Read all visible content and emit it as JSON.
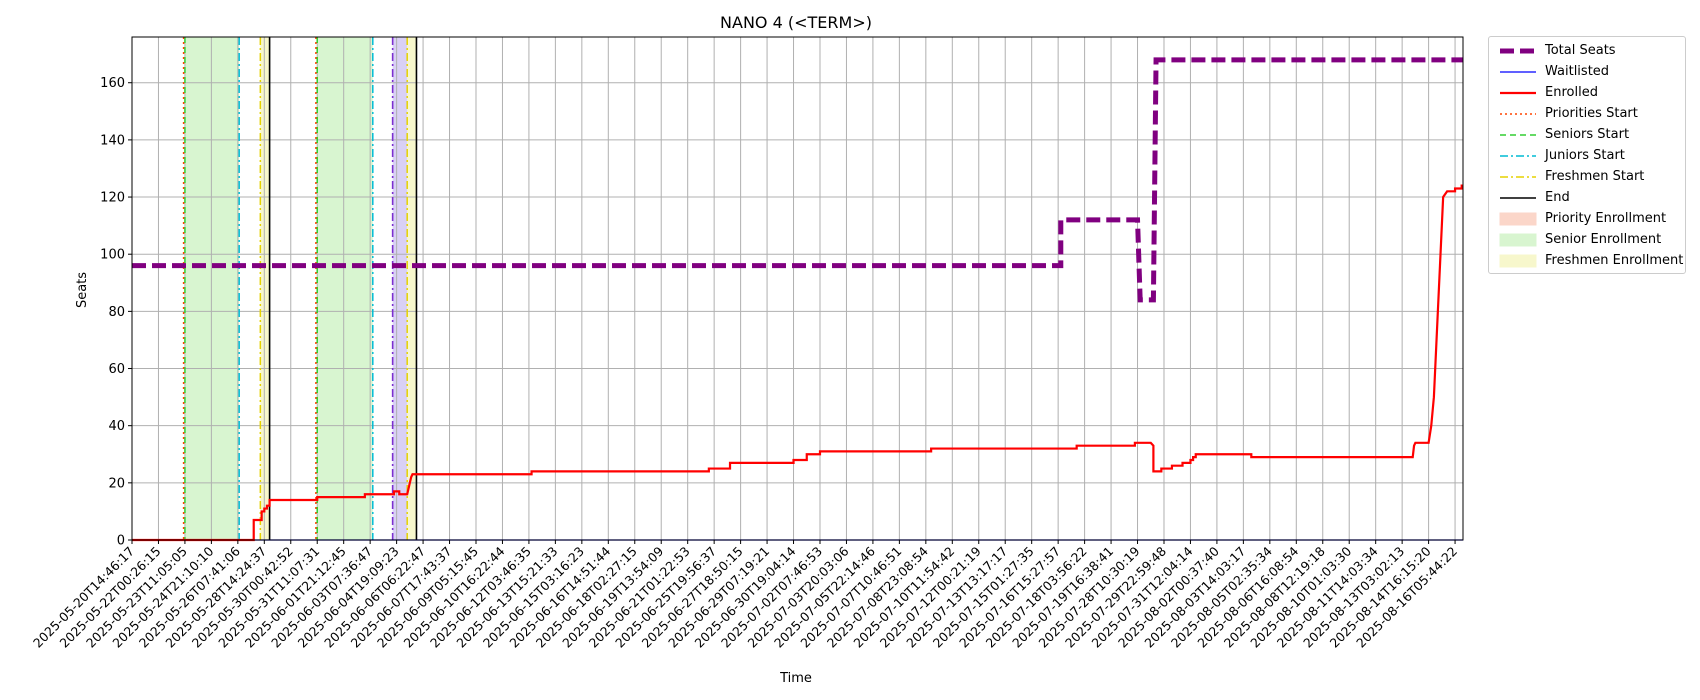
{
  "chart_data": {
    "type": "line",
    "title": "NANO 4 (<TERM>)",
    "xlabel": "Time",
    "ylabel": "Seats",
    "ylim": [
      0,
      176
    ],
    "y_ticks": [
      0,
      20,
      40,
      60,
      80,
      100,
      120,
      140,
      160
    ],
    "grid": true,
    "legend_position": "outside-top-right",
    "x_ticks": [
      "2025-05-20T14:46:17",
      "2025-05-22T00:26:15",
      "2025-05-23T11:05:05",
      "2025-05-24T21:10:10",
      "2025-05-26T07:41:06",
      "2025-05-28T14:24:37",
      "2025-05-30T00:42:52",
      "2025-05-31T11:07:31",
      "2025-06-01T21:12:45",
      "2025-06-03T07:36:47",
      "2025-06-04T19:09:23",
      "2025-06-06T06:22:47",
      "2025-06-07T17:43:37",
      "2025-06-09T05:15:45",
      "2025-06-10T16:22:44",
      "2025-06-12T03:46:35",
      "2025-06-13T15:21:33",
      "2025-06-15T03:16:23",
      "2025-06-16T14:51:44",
      "2025-06-18T02:27:15",
      "2025-06-19T13:54:09",
      "2025-06-21T01:22:53",
      "2025-06-25T19:56:37",
      "2025-06-27T18:50:15",
      "2025-06-29T07:19:21",
      "2025-06-30T19:04:14",
      "2025-07-02T07:46:53",
      "2025-07-03T20:03:06",
      "2025-07-05T22:14:46",
      "2025-07-07T10:46:51",
      "2025-07-08T23:08:54",
      "2025-07-10T11:54:42",
      "2025-07-12T00:21:19",
      "2025-07-13T13:17:17",
      "2025-07-15T01:27:35",
      "2025-07-16T15:27:57",
      "2025-07-18T03:56:22",
      "2025-07-19T16:38:41",
      "2025-07-28T10:30:19",
      "2025-07-29T22:59:48",
      "2025-07-31T12:04:14",
      "2025-08-02T00:37:40",
      "2025-08-03T14:03:17",
      "2025-08-05T02:35:34",
      "2025-08-06T16:08:54",
      "2025-08-08T12:19:18",
      "2025-08-10T01:03:30",
      "2025-08-11T14:03:34",
      "2025-08-13T03:02:13",
      "2025-08-14T16:15:20",
      "2025-08-16T05:44:22"
    ],
    "series": [
      {
        "name": "Total Seats",
        "color": "#800080",
        "step": true,
        "points": [
          [
            0,
            96
          ],
          [
            35.1,
            96
          ],
          [
            35.1,
            112
          ],
          [
            38.0,
            112
          ],
          [
            38.1,
            84
          ],
          [
            38.6,
            84
          ],
          [
            38.7,
            168
          ],
          [
            50.3,
            168
          ]
        ]
      },
      {
        "name": "Waitlisted",
        "color": "#0000ff",
        "step": true,
        "points": [
          [
            0,
            0
          ],
          [
            50.3,
            0
          ]
        ]
      },
      {
        "name": "Enrolled",
        "color": "#ff0000",
        "step": true,
        "points": [
          [
            0,
            0
          ],
          [
            4.6,
            0
          ],
          [
            4.6,
            7
          ],
          [
            4.9,
            7
          ],
          [
            4.9,
            10
          ],
          [
            5.0,
            10
          ],
          [
            5.0,
            11
          ],
          [
            5.1,
            11
          ],
          [
            5.1,
            12
          ],
          [
            5.2,
            12
          ],
          [
            5.2,
            14
          ],
          [
            7.0,
            14
          ],
          [
            7.0,
            15
          ],
          [
            8.8,
            15
          ],
          [
            8.8,
            16
          ],
          [
            9.9,
            16
          ],
          [
            9.9,
            17
          ],
          [
            10.1,
            17
          ],
          [
            10.1,
            16
          ],
          [
            10.4,
            16
          ],
          [
            10.55,
            22
          ],
          [
            10.6,
            23
          ],
          [
            15.1,
            23
          ],
          [
            15.1,
            24
          ],
          [
            21.8,
            24
          ],
          [
            21.8,
            25
          ],
          [
            22.6,
            25
          ],
          [
            22.6,
            27
          ],
          [
            25.0,
            27
          ],
          [
            25.0,
            28
          ],
          [
            25.5,
            28
          ],
          [
            25.5,
            30
          ],
          [
            26.0,
            30
          ],
          [
            26.0,
            31
          ],
          [
            30.2,
            31
          ],
          [
            30.2,
            32
          ],
          [
            35.7,
            32
          ],
          [
            35.7,
            33
          ],
          [
            37.9,
            33
          ],
          [
            37.9,
            34
          ],
          [
            38.5,
            34
          ],
          [
            38.6,
            33
          ],
          [
            38.6,
            24
          ],
          [
            38.9,
            24
          ],
          [
            38.9,
            25
          ],
          [
            39.3,
            25
          ],
          [
            39.3,
            26
          ],
          [
            39.7,
            26
          ],
          [
            39.7,
            27
          ],
          [
            40.0,
            27
          ],
          [
            40.0,
            28
          ],
          [
            40.1,
            28
          ],
          [
            40.1,
            29
          ],
          [
            40.2,
            29
          ],
          [
            40.2,
            30
          ],
          [
            42.3,
            30
          ],
          [
            42.3,
            29
          ],
          [
            48.4,
            29
          ],
          [
            48.45,
            33
          ],
          [
            48.5,
            34
          ],
          [
            49.0,
            34
          ],
          [
            49.1,
            40
          ],
          [
            49.2,
            50
          ],
          [
            49.35,
            80
          ],
          [
            49.5,
            110
          ],
          [
            49.55,
            120
          ],
          [
            49.7,
            122
          ],
          [
            50.0,
            122
          ],
          [
            50.0,
            123
          ],
          [
            50.25,
            123
          ],
          [
            50.25,
            124
          ],
          [
            50.3,
            124
          ]
        ]
      }
    ],
    "vertical_markers": [
      {
        "name": "Priorities Start",
        "color": "#ff4500",
        "style": "dotted",
        "x": [
          1.95,
          6.95
        ]
      },
      {
        "name": "Seniors Start",
        "color": "#32cd32",
        "style": "dashed",
        "x": [
          2.0,
          7.0
        ]
      },
      {
        "name": "Juniors Start",
        "color": "#00bcd4",
        "style": "dashdot",
        "x": [
          4.05,
          9.1
        ]
      },
      {
        "name": "Freshmen Start",
        "color": "#e6d200",
        "style": "dashdot",
        "x": [
          4.85,
          10.4
        ]
      },
      {
        "name": "End",
        "color": "#000000",
        "style": "solid",
        "x": [
          5.2,
          10.75
        ]
      }
    ],
    "shaded_regions": [
      {
        "name": "Priority Enrollment",
        "color": "#fbd6c9",
        "spans": []
      },
      {
        "name": "Senior Enrollment",
        "color": "#d8f5d0",
        "spans": [
          [
            2.0,
            4.05
          ],
          [
            7.0,
            9.1
          ]
        ]
      },
      {
        "name": "Freshmen Enrollment",
        "color": "#f7f7cc",
        "spans": [
          [
            4.85,
            5.2
          ],
          [
            10.4,
            10.75
          ]
        ]
      },
      {
        "name": "",
        "color": "#d9d0f5",
        "spans": [
          [
            9.85,
            10.4
          ]
        ]
      }
    ],
    "extra_markers": [
      {
        "color": "#7b2fd0",
        "style": "dashdot",
        "x": [
          9.85
        ]
      }
    ],
    "legend": [
      "Total Seats",
      "Waitlisted",
      "Enrolled",
      "Priorities Start",
      "Seniors Start",
      "Juniors Start",
      "Freshmen Start",
      "End",
      "Priority Enrollment",
      "Senior Enrollment",
      "Freshmen Enrollment"
    ]
  }
}
